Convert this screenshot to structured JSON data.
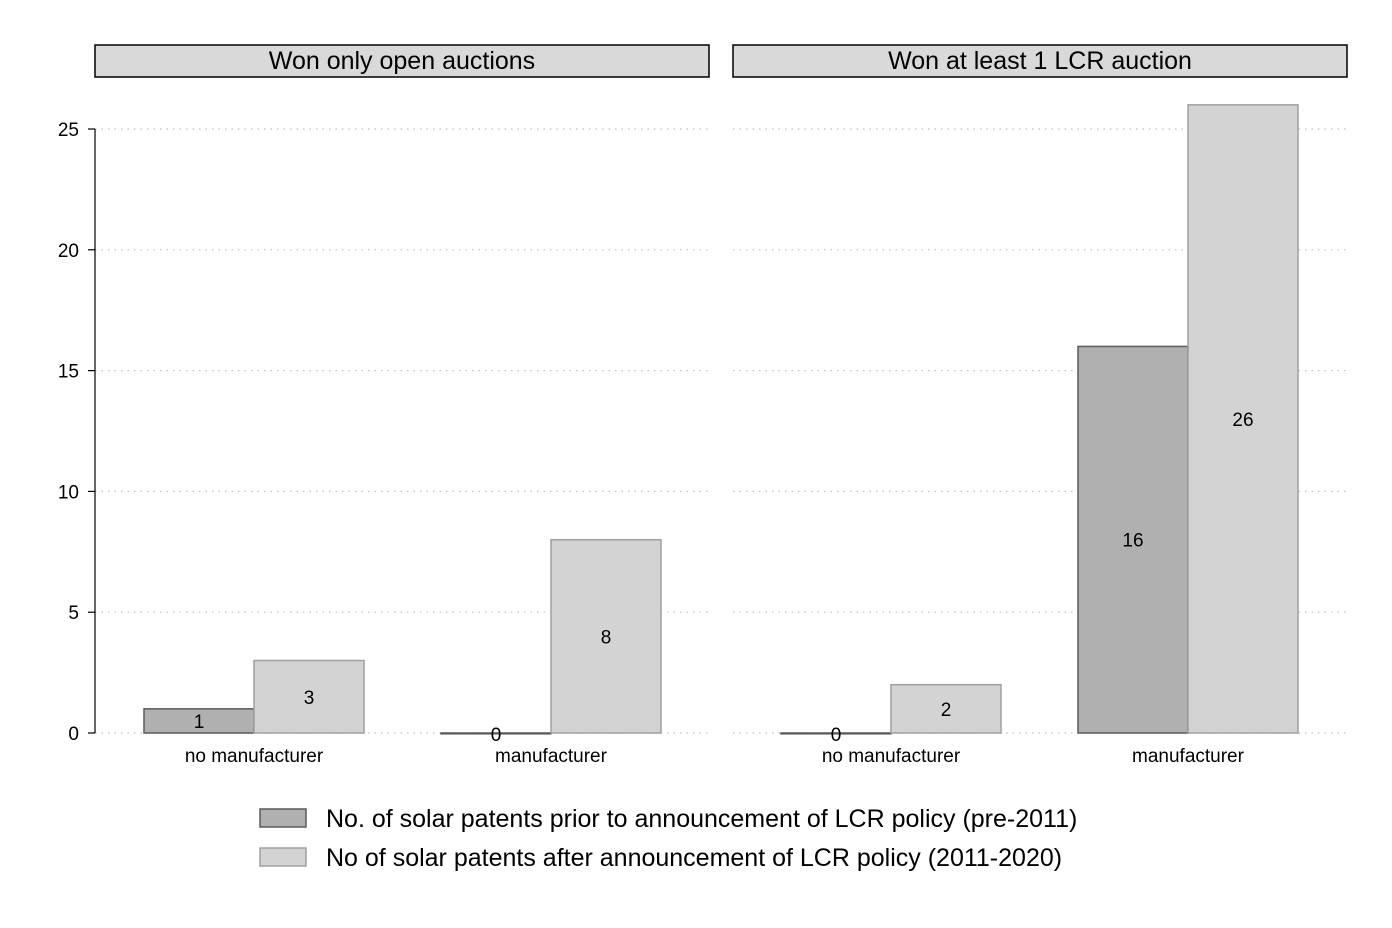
{
  "chart_data": {
    "type": "bar",
    "categories": [
      "no manufacturer",
      "manufacturer"
    ],
    "panels": [
      {
        "title": "Won only open auctions",
        "series": [
          {
            "name": "No. of solar patents prior to announcement of LCR policy (pre-2011)",
            "values": [
              1,
              0
            ]
          },
          {
            "name": "No of solar patents after announcement of LCR policy (2011-2020)",
            "values": [
              3,
              8
            ]
          }
        ]
      },
      {
        "title": "Won at least 1 LCR auction",
        "series": [
          {
            "name": "No. of solar patents prior to announcement of LCR policy (pre-2011)",
            "values": [
              0,
              16
            ]
          },
          {
            "name": "No of solar patents after announcement of LCR policy (2011-2020)",
            "values": [
              2,
              26
            ]
          }
        ]
      }
    ],
    "ylim": [
      0,
      25
    ],
    "yticks": [
      0,
      5,
      10,
      15,
      20,
      25
    ],
    "grid": true,
    "legend": {
      "position": "bottom",
      "entries": [
        "No. of solar patents prior to announcement of LCR policy (pre-2011)",
        "No of solar patents after announcement of LCR policy (2011-2020)"
      ]
    },
    "colors": {
      "pre": "#b0b0b0",
      "post": "#d3d3d3",
      "pre_stroke": "#5a5a5a",
      "post_stroke": "#a0a0a0",
      "strip_fill": "#d9d9d9",
      "grid": "#bfbfbf"
    }
  }
}
